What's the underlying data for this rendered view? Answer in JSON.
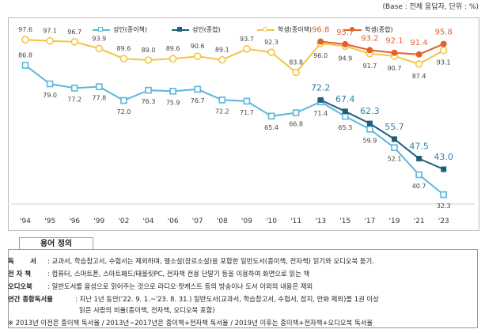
{
  "unit_note": "(Base : 전체 응답자, 단위 : %)",
  "chart_data": {
    "type": "line",
    "categories": [
      "'94",
      "'95",
      "'96",
      "'99",
      "'02",
      "'04",
      "'06",
      "'07",
      "'08",
      "'09",
      "'10",
      "'11",
      "'13",
      "'15",
      "'17",
      "'19",
      "'21",
      "'23"
    ],
    "ylim": [
      25,
      105
    ],
    "series": [
      {
        "name": "성인(종이책)",
        "key": "adult_paper",
        "color": "#5bb7d9",
        "marker": "square-open",
        "values": [
          86.8,
          79.0,
          77.2,
          77.8,
          72.0,
          76.3,
          75.9,
          76.7,
          72.2,
          71.7,
          65.4,
          66.8,
          71.4,
          65.3,
          59.9,
          52.1,
          40.7,
          32.3
        ],
        "labels": [
          "86.8",
          "79.0",
          "77.2",
          "77.8",
          "72.0",
          "76.3",
          "75.9",
          "76.7",
          "72.2",
          "71.7",
          "65.4",
          "66.8",
          "71.4",
          "65.3",
          "59.9",
          "52.1",
          "40.7",
          "32.3"
        ]
      },
      {
        "name": "성인(종합)",
        "key": "adult_total",
        "color": "#1f5f7a",
        "marker": "square-filled",
        "values": [
          null,
          null,
          null,
          null,
          null,
          null,
          null,
          null,
          null,
          null,
          null,
          null,
          72.2,
          67.4,
          62.3,
          55.7,
          47.5,
          43.0
        ],
        "labels": [
          null,
          null,
          null,
          null,
          null,
          null,
          null,
          null,
          null,
          null,
          null,
          null,
          "72.2",
          "67.4",
          "62.3",
          "55.7",
          "47.5",
          "43.0"
        ]
      },
      {
        "name": "학생(종이책)",
        "key": "student_paper",
        "color": "#f4c542",
        "marker": "circle-open",
        "values": [
          97.6,
          97.1,
          96.7,
          93.9,
          89.6,
          89.0,
          89.6,
          90.6,
          89.1,
          93.7,
          92.3,
          83.8,
          96.0,
          94.9,
          91.7,
          90.7,
          87.4,
          93.1
        ],
        "labels": [
          "97.6",
          "97.1",
          "96.7",
          "93.9",
          "89.6",
          "89.0",
          "89.6",
          "90.6",
          "89.1",
          "93.7",
          "92.3",
          "83.8",
          "96.0",
          "94.9",
          "91.7",
          "90.7",
          "87.4",
          "93.1"
        ]
      },
      {
        "name": "학생(종합)",
        "key": "student_total",
        "color": "#e4602b",
        "marker": "circle-filled",
        "values": [
          null,
          null,
          null,
          null,
          null,
          null,
          null,
          null,
          null,
          null,
          null,
          null,
          96.8,
          95.7,
          93.2,
          92.1,
          91.4,
          95.8
        ],
        "labels": [
          null,
          null,
          null,
          null,
          null,
          null,
          null,
          null,
          null,
          null,
          null,
          null,
          "96.8",
          "95.7",
          "93.2",
          "92.1",
          "91.4",
          "95.8"
        ]
      }
    ]
  },
  "glossary": {
    "title": "용어 정의",
    "rows": [
      {
        "term": "독       서",
        "text": ": 교과서, 학습참고서, 수험서는 제외하며, 웹소설(장르소설)을 포함한 일반도서(종이책, 전자책) 읽기와 오디오북 듣기."
      },
      {
        "term": "전 자 책",
        "text": ": 컴퓨터, 스마트폰, 스마트패드/태블릿PC, 전자책 전용 단말기 등을 이용하여 화면으로 읽는 책"
      },
      {
        "term": "오디오북",
        "text": ": 일반도서를 음성으로 읽어주는 것으로 라디오·팟캐스트 등의 방송이나 도서 이외의 내용은 제외"
      },
      {
        "term": "연간 종합독서율",
        "text": ": 지난 1년 동안('22. 9. 1.~'23. 8. 31.) 일반도서(교과서, 학습참고서, 수험서, 잡지, 만화 제외)를 1권 이상"
      },
      {
        "term": "",
        "text": "읽은 사람의 비율(종이책, 전자책, 오디오북 포함)"
      },
      {
        "term": "",
        "text": "※ 2013년 이전은 종이책 독서율 / 2013년~2017년은 종이책+전자책 독서율 / 2019년 이후는 종이책+전자책+오디오북 독서율"
      }
    ]
  }
}
